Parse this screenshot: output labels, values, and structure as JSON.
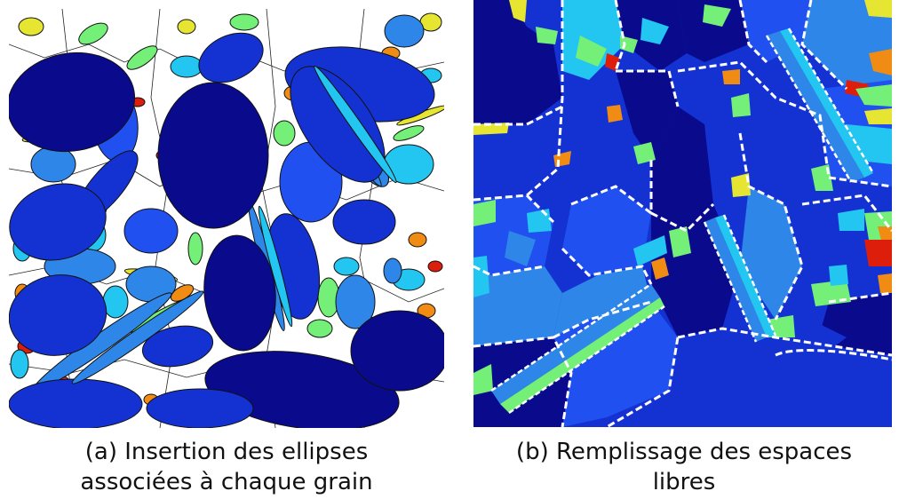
{
  "figure": {
    "panel_a": {
      "caption_line1": "(a) Insertion des ellipses",
      "caption_line2": "associées à chaque grain"
    },
    "panel_b": {
      "caption_line1": "(b) Remplissage des espaces",
      "caption_line2": "libres"
    }
  },
  "colors": {
    "dark_navy": "#0a0a8c",
    "blue": "#1432d2",
    "mid_blue": "#2050f0",
    "light_blue": "#2e86e8",
    "cyan": "#22c6f0",
    "green": "#74f078",
    "yellow": "#e6e632",
    "orange": "#f08c14",
    "red": "#dc1e0a",
    "outline": "#111111",
    "boundary_dash": "#ffffff"
  }
}
